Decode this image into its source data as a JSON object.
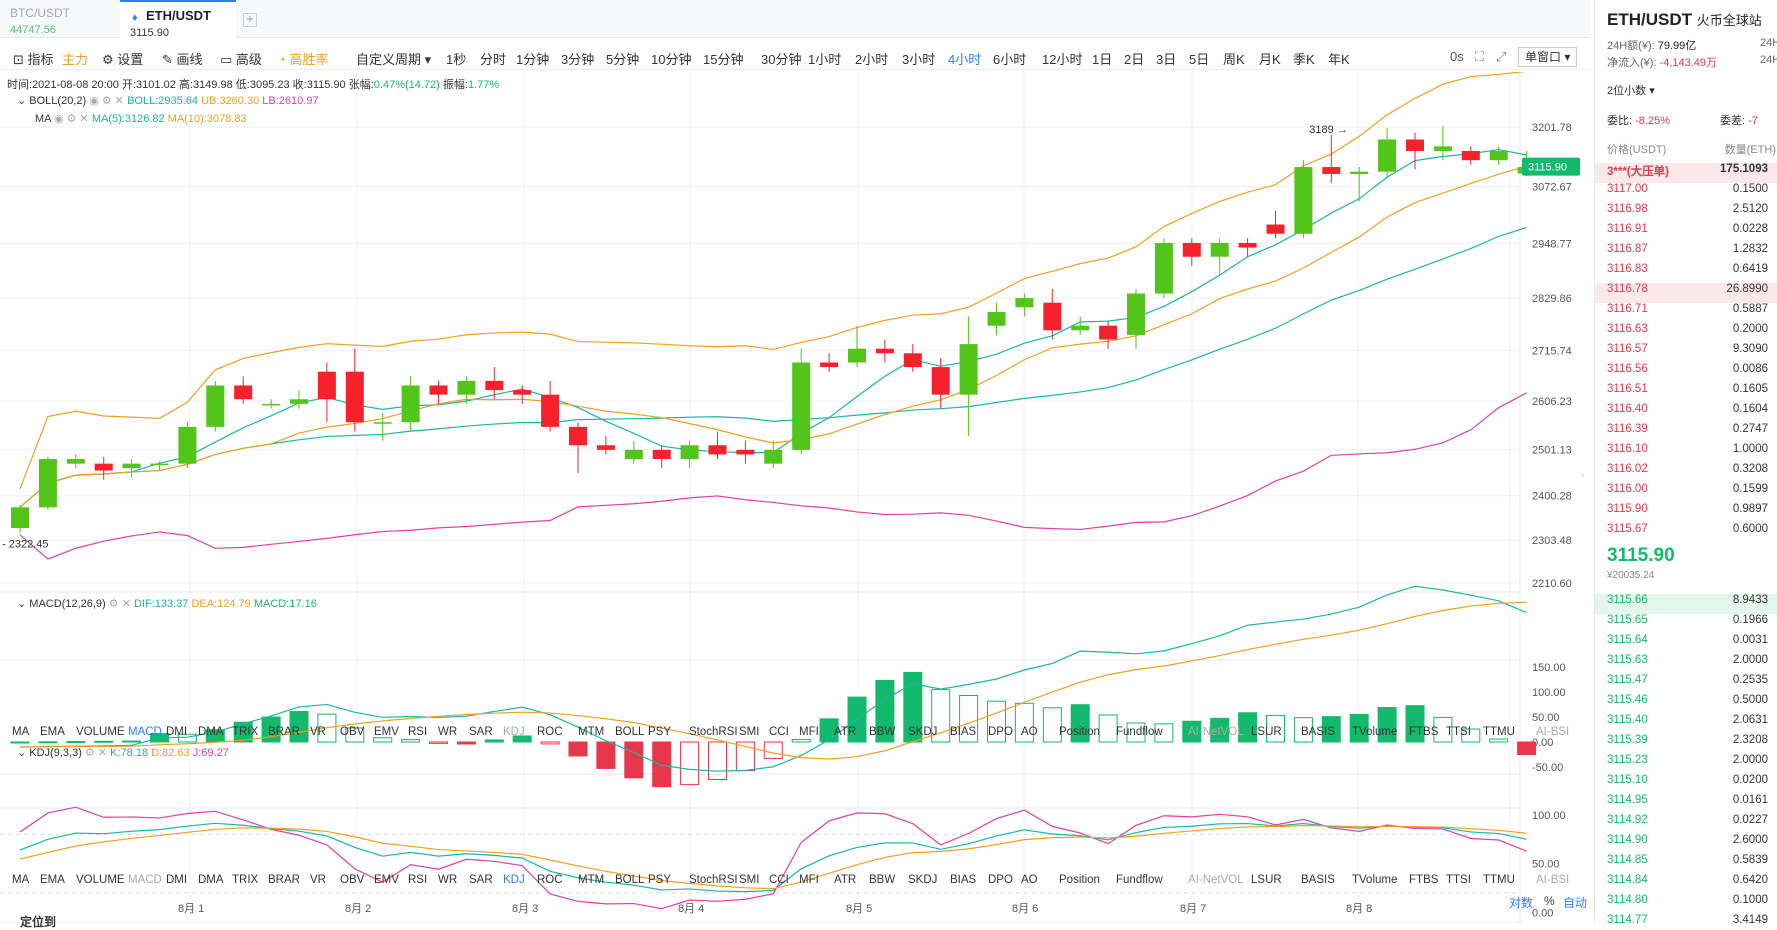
{
  "tabs": [
    {
      "pair": "BTC/USDT",
      "price": "44747.56",
      "active": false
    },
    {
      "pair": "ETH/USDT",
      "price": "3115.90",
      "active": true
    }
  ],
  "toolbar": {
    "indicator": "指标",
    "main": "主力",
    "settings": "设置",
    "draw": "画线",
    "advanced": "高级",
    "winrate": "高胜率",
    "custom_period": "自定义周期",
    "periods": [
      "1秒",
      "分时",
      "1分钟",
      "3分钟",
      "5分钟",
      "10分钟",
      "15分钟",
      "30分钟",
      "1小时",
      "2小时",
      "3小时",
      "4小时",
      "6小时",
      "12小时",
      "1日",
      "2日",
      "3日",
      "5日",
      "周K",
      "月K",
      "季K",
      "年K"
    ],
    "active_period": "4小时",
    "countdown": "0s",
    "window_mode": "单窗口"
  },
  "ohlc": {
    "time_label": "时间:",
    "time": "2021-08-08 20:00",
    "open_label": "开:",
    "open": "3101.02",
    "high_label": "高:",
    "high": "3149.98",
    "low_label": "低:",
    "low": "3095.23",
    "close_label": "收:",
    "close": "3115.90",
    "change_label": "张幅:",
    "change": "0.47%(14.72)",
    "amp_label": "振幅:",
    "amp": "1.77%"
  },
  "boll": {
    "name": "BOLL(20,2)",
    "boll": "BOLL:2935.64",
    "ub": "UB:3260.30",
    "lb": "LB:2610.97"
  },
  "ma": {
    "name": "MA",
    "ma5": "MA(5):3126.82",
    "ma10": "MA(10):3078.83"
  },
  "price_axis": [
    "3201.78",
    "3072.67",
    "2948.77",
    "2829.86",
    "2715.74",
    "2606.23",
    "2501.13",
    "2400.28",
    "2303.48",
    "2210.60"
  ],
  "last_price_tag": "3115.90",
  "high_marker": "3189",
  "low_marker": "2322.45",
  "macd": {
    "name": "MACD(12,26,9)",
    "dif": "DIF:133.37",
    "dea": "DEA:124.79",
    "macd": "MACD:17.16",
    "axis": [
      "150.00",
      "100.00",
      "50.00",
      "0.00",
      "-50.00"
    ]
  },
  "kdj": {
    "name": "KDJ(9,3,3)",
    "k": "K:78.18",
    "d": "D:82.63",
    "j": "J:69.27",
    "axis": [
      "100.00",
      "50.00",
      "0.00"
    ]
  },
  "indicator_tabs": [
    "MA",
    "EMA",
    "VOLUME",
    "MACD",
    "DMI",
    "DMA",
    "TRIX",
    "BRAR",
    "VR",
    "OBV",
    "EMV",
    "RSI",
    "WR",
    "SAR",
    "KDJ",
    "ROC",
    "MTM",
    "BOLL",
    "PSY",
    "StochRSI",
    "SMI",
    "CCI",
    "MFI",
    "ATR",
    "BBW",
    "SKDJ",
    "BIAS",
    "DPO",
    "AO",
    "Position",
    "Fundflow",
    "AI-NetVOL",
    "LSUR",
    "BASIS",
    "TVolume",
    "FTBS",
    "TTSI",
    "TTMU",
    "AI-BSI"
  ],
  "dates": [
    "8月 1",
    "8月 2",
    "8月 3",
    "8月 4",
    "8月 5",
    "8月 6",
    "8月 7",
    "8月 8"
  ],
  "bottom_right": {
    "log": "对数",
    "pct": "%",
    "auto": "自动"
  },
  "bottom_left": "定位到",
  "chart_data": {
    "type": "candlestick",
    "title": "ETH/USDT 4小时",
    "ylim": [
      2180,
      3300
    ],
    "candles": [
      [
        2330,
        2375,
        2320,
        2380
      ],
      [
        2375,
        2480,
        2370,
        2485
      ],
      [
        2470,
        2480,
        2460,
        2490
      ],
      [
        2470,
        2455,
        2435,
        2485
      ],
      [
        2460,
        2470,
        2440,
        2480
      ],
      [
        2470,
        2470,
        2455,
        2475
      ],
      [
        2470,
        2550,
        2460,
        2560
      ],
      [
        2550,
        2640,
        2540,
        2650
      ],
      [
        2640,
        2610,
        2600,
        2660
      ],
      [
        2600,
        2600,
        2590,
        2610
      ],
      [
        2600,
        2610,
        2590,
        2630
      ],
      [
        2670,
        2610,
        2560,
        2690
      ],
      [
        2670,
        2560,
        2540,
        2720
      ],
      [
        2560,
        2560,
        2520,
        2580
      ],
      [
        2560,
        2640,
        2540,
        2660
      ],
      [
        2640,
        2620,
        2600,
        2650
      ],
      [
        2620,
        2650,
        2600,
        2660
      ],
      [
        2650,
        2630,
        2610,
        2680
      ],
      [
        2630,
        2620,
        2600,
        2640
      ],
      [
        2620,
        2550,
        2540,
        2650
      ],
      [
        2550,
        2510,
        2450,
        2560
      ],
      [
        2510,
        2500,
        2490,
        2530
      ],
      [
        2480,
        2500,
        2470,
        2520
      ],
      [
        2500,
        2480,
        2460,
        2510
      ],
      [
        2480,
        2510,
        2460,
        2520
      ],
      [
        2510,
        2490,
        2480,
        2540
      ],
      [
        2500,
        2490,
        2470,
        2520
      ],
      [
        2470,
        2500,
        2460,
        2520
      ],
      [
        2500,
        2690,
        2490,
        2720
      ],
      [
        2690,
        2680,
        2670,
        2710
      ],
      [
        2690,
        2720,
        2680,
        2770
      ],
      [
        2720,
        2710,
        2690,
        2740
      ],
      [
        2710,
        2680,
        2670,
        2730
      ],
      [
        2680,
        2620,
        2590,
        2700
      ],
      [
        2620,
        2730,
        2530,
        2790
      ],
      [
        2770,
        2800,
        2750,
        2820
      ],
      [
        2810,
        2830,
        2790,
        2840
      ],
      [
        2820,
        2760,
        2740,
        2850
      ],
      [
        2760,
        2770,
        2750,
        2790
      ],
      [
        2770,
        2740,
        2720,
        2780
      ],
      [
        2750,
        2840,
        2720,
        2850
      ],
      [
        2840,
        2950,
        2830,
        2960
      ],
      [
        2950,
        2920,
        2900,
        2960
      ],
      [
        2920,
        2950,
        2880,
        2960
      ],
      [
        2950,
        2940,
        2920,
        2960
      ],
      [
        2990,
        2970,
        2960,
        3020
      ],
      [
        2970,
        3115,
        2960,
        3130
      ],
      [
        3115,
        3100,
        3080,
        3185
      ],
      [
        3100,
        3105,
        3040,
        3115
      ],
      [
        3105,
        3175,
        3090,
        3200
      ],
      [
        3175,
        3150,
        3110,
        3190
      ],
      [
        3150,
        3160,
        3130,
        3205
      ],
      [
        3150,
        3130,
        3120,
        3160
      ],
      [
        3130,
        3150,
        3120,
        3160
      ],
      [
        3101,
        3115,
        3095,
        3150
      ]
    ]
  }
}
